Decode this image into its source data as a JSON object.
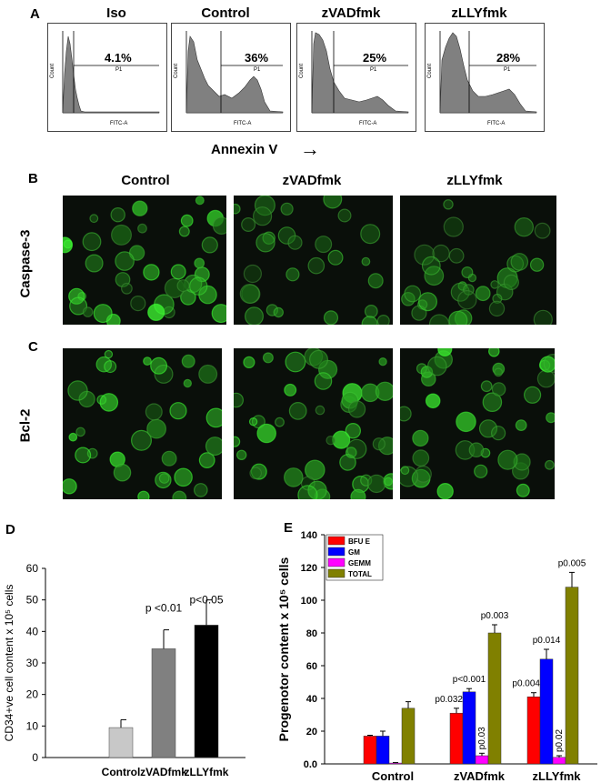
{
  "panel_labels": {
    "a": "A",
    "b": "B",
    "c": "C",
    "d": "D",
    "e": "E"
  },
  "panel_a": {
    "titles": [
      "Iso",
      "Control",
      "zVADfmk",
      "zLLYfmk"
    ],
    "percentages": [
      "4.1%",
      "36%",
      "25%",
      "28%"
    ],
    "gate_label": "P1",
    "x_axis_label": "FITC-A",
    "y_axis_label": "Count",
    "bottom_label": "Annexin V",
    "arrow": "→"
  },
  "panel_bc": {
    "column_titles": [
      "Control",
      "zVADfmk",
      "zLLYfmk"
    ],
    "row_labels": {
      "b": "Caspase-3",
      "c": "Bcl-2"
    }
  },
  "chart_data": [
    {
      "type": "bar",
      "panel": "D",
      "categories": [
        "Control",
        "zVADfmk",
        "zLLYfmk"
      ],
      "values": [
        9.5,
        34.5,
        42
      ],
      "errors": [
        2.5,
        6,
        8
      ],
      "bar_colors": [
        "#c8c8c8",
        "#808080",
        "#000000"
      ],
      "annotations": [
        "",
        "p <0.01",
        "p<0.05"
      ],
      "ylabel": "CD34+ve cell content x 10⁵ cells",
      "ylim": [
        0,
        60
      ],
      "yticks": [
        "0",
        "10",
        "20",
        "30",
        "40",
        "50",
        "60"
      ]
    },
    {
      "type": "bar",
      "panel": "E",
      "categories": [
        "Control",
        "zVADfmk",
        "zLLYfmk"
      ],
      "series": [
        {
          "name": "BFU E",
          "color": "#ff0000",
          "values": [
            17,
            31,
            41
          ],
          "errors": [
            0.5,
            3,
            2.5
          ],
          "annotations": [
            "",
            "p0.032",
            "p0.004"
          ]
        },
        {
          "name": "GM",
          "color": "#0000ff",
          "values": [
            17,
            44,
            64
          ],
          "errors": [
            3,
            2,
            6
          ],
          "annotations": [
            "",
            "p<0.001",
            "p0.014"
          ]
        },
        {
          "name": "GEMM",
          "color": "#ff00ff",
          "values": [
            0.5,
            5,
            4
          ],
          "errors": [
            0.3,
            1.5,
            1
          ],
          "annotations": [
            "",
            "p0.03",
            "p0.02"
          ]
        },
        {
          "name": "TOTAL",
          "color": "#808000",
          "values": [
            34,
            80,
            108
          ],
          "errors": [
            4,
            5,
            9
          ],
          "annotations": [
            "",
            "p0.003",
            "p0.005"
          ]
        }
      ],
      "ylabel": "Progenotor content x 10⁵ cells",
      "ylim": [
        0,
        140
      ],
      "yticks": [
        "0.0",
        "20",
        "40",
        "60",
        "80",
        "100",
        "120",
        "140"
      ]
    }
  ]
}
